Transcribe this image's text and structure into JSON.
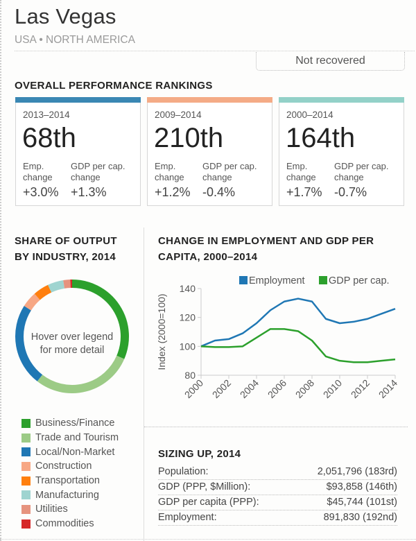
{
  "header": {
    "city": "Las Vegas",
    "region": "USA • NORTH AMERICA",
    "status": "Not recovered"
  },
  "rankings": {
    "title": "OVERALL PERFORMANCE RANKINGS",
    "emp_label_1": "Emp.",
    "emp_label_2": "change",
    "gdp_label_1": "GDP per cap.",
    "gdp_label_2": "change",
    "cards": [
      {
        "period": "2013–2014",
        "rank": "68th",
        "emp": "+3.0%",
        "gdp": "+1.3%",
        "color": "#3a87b3"
      },
      {
        "period": "2009–2014",
        "rank": "210th",
        "emp": "+1.2%",
        "gdp": "-0.4%",
        "color": "#f4ab86"
      },
      {
        "period": "2000–2014",
        "rank": "164th",
        "emp": "+1.7%",
        "gdp": "-0.7%",
        "color": "#93d1c8"
      }
    ]
  },
  "share": {
    "title_1": "SHARE OF OUTPUT",
    "title_2": "BY INDUSTRY, 2014",
    "center_1": "Hover over legend",
    "center_2": "for more detail"
  },
  "change": {
    "title_1": "CHANGE IN EMPLOYMENT AND GDP PER",
    "title_2": "CAPITA, 2000–2014"
  },
  "sizing": {
    "title": "SIZING UP, 2014",
    "rows": [
      {
        "label": "Population:",
        "value": "2,051,796 (183rd)"
      },
      {
        "label": "GDP (PPP, $Million):",
        "value": "$93,858 (146th)"
      },
      {
        "label": "GDP per capita (PPP):",
        "value": "$45,744 (101st)"
      },
      {
        "label": "Employment:",
        "value": "891,830 (192nd)"
      }
    ]
  },
  "chart_data": [
    {
      "type": "pie",
      "title": "SHARE OF OUTPUT BY INDUSTRY, 2014",
      "donut": true,
      "categories": [
        "Business/Finance",
        "Trade and Tourism",
        "Local/Non-Market",
        "Construction",
        "Transportation",
        "Manufacturing",
        "Utilities",
        "Commodities"
      ],
      "values": [
        31.5,
        29,
        23.5,
        4.5,
        4.5,
        4.5,
        2,
        0.5
      ],
      "colors": [
        "#2ca02c",
        "#9ccb86",
        "#1f77b4",
        "#f7a784",
        "#ff7f0e",
        "#9fd4d0",
        "#e6937e",
        "#d62728"
      ],
      "legend": "bottom-left"
    },
    {
      "type": "line",
      "title": "CHANGE IN EMPLOYMENT AND GDP PER CAPITA, 2000–2014",
      "xlabel": "",
      "ylabel": "Index (2000=100)",
      "x": [
        2000,
        2001,
        2002,
        2003,
        2004,
        2005,
        2006,
        2007,
        2008,
        2009,
        2010,
        2011,
        2012,
        2013,
        2014
      ],
      "xticks": [
        "2000",
        "2002",
        "2004",
        "2006",
        "2008",
        "2010",
        "2012",
        "2014"
      ],
      "yticks": [
        "80",
        "100",
        "120",
        "140"
      ],
      "ylim": [
        80,
        140
      ],
      "xlim": [
        2000,
        2014
      ],
      "grid": false,
      "legend": "top-right",
      "series": [
        {
          "name": "Employment",
          "color": "#1f77b4",
          "values": [
            100,
            104,
            105,
            109,
            116,
            125,
            131,
            133,
            131,
            119,
            116,
            117,
            119,
            122.5,
            126
          ]
        },
        {
          "name": "GDP per cap.",
          "color": "#2ca02c",
          "values": [
            100,
            99.5,
            99.5,
            100,
            106,
            112,
            112,
            110.5,
            104,
            93,
            90,
            89,
            89,
            90,
            91
          ]
        }
      ]
    }
  ]
}
